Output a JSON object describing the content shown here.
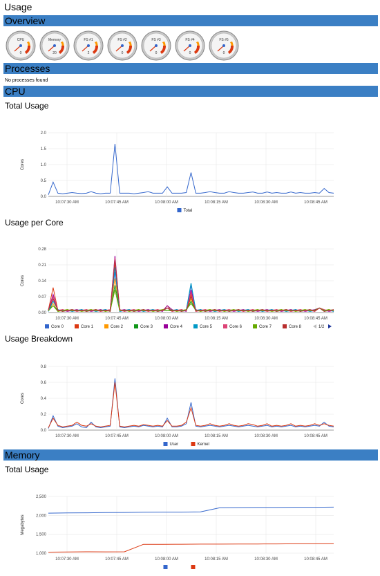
{
  "page": {
    "title": "Usage"
  },
  "sections": {
    "overview": "Overview",
    "processes": "Processes",
    "cpu": "CPU",
    "memory": "Memory"
  },
  "processes": {
    "empty_text": "No processes found"
  },
  "gauges": [
    {
      "label": "CPU",
      "value": "0",
      "icon": "cpu-gauge"
    },
    {
      "label": "Memory",
      "value": "20",
      "icon": "memory-gauge"
    },
    {
      "label": "FS #1",
      "value": "2",
      "icon": "fs-gauge"
    },
    {
      "label": "FS #2",
      "value": "0",
      "icon": "fs-gauge"
    },
    {
      "label": "FS #3",
      "value": "0",
      "icon": "fs-gauge"
    },
    {
      "label": "FS #4",
      "value": "0",
      "icon": "fs-gauge"
    },
    {
      "label": "FS #5",
      "value": "0",
      "icon": "fs-gauge"
    }
  ],
  "cpu": {
    "total_usage_title": "Total Usage",
    "per_core_title": "Usage per Core",
    "breakdown_title": "Usage Breakdown"
  },
  "memory": {
    "total_usage_title": "Total Usage"
  },
  "chart_data": [
    {
      "id": "cpu-total",
      "type": "line",
      "ylabel": "Cores",
      "ylim": [
        0,
        2.0
      ],
      "yticks": [
        "2.0",
        "1.5",
        "1.0",
        "0.5",
        "0.0"
      ],
      "xticks": [
        "10:07:30 AM",
        "10:07:45 AM",
        "10:08:00 AM",
        "10:08:15 AM",
        "10:08:30 AM",
        "10:08:45 AM"
      ],
      "legend": "bottom",
      "series": [
        {
          "name": "Total",
          "color": "#3366cc",
          "values": [
            0.05,
            0.45,
            0.1,
            0.08,
            0.1,
            0.12,
            0.1,
            0.09,
            0.1,
            0.15,
            0.1,
            0.08,
            0.1,
            0.1,
            1.65,
            0.1,
            0.1,
            0.1,
            0.08,
            0.1,
            0.12,
            0.15,
            0.1,
            0.1,
            0.1,
            0.3,
            0.1,
            0.1,
            0.1,
            0.12,
            0.75,
            0.1,
            0.1,
            0.12,
            0.15,
            0.12,
            0.1,
            0.1,
            0.15,
            0.12,
            0.1,
            0.1,
            0.12,
            0.14,
            0.1,
            0.1,
            0.14,
            0.1,
            0.12,
            0.1,
            0.1,
            0.14,
            0.1,
            0.12,
            0.1,
            0.1,
            0.12,
            0.1,
            0.25,
            0.12,
            0.1
          ]
        }
      ]
    },
    {
      "id": "cpu-per-core",
      "type": "line",
      "ylabel": "Cores",
      "ylim": [
        0,
        0.28
      ],
      "yticks": [
        "0.28",
        "0.21",
        "0.14",
        "0.07",
        "0.00"
      ],
      "xticks": [
        "10:07:30 AM",
        "10:07:45 AM",
        "10:08:00 AM",
        "10:08:15 AM",
        "10:08:30 AM",
        "10:08:45 AM"
      ],
      "legend": "bottom",
      "legend_page": "1/2",
      "series": [
        {
          "name": "Core 0",
          "color": "#3366cc",
          "peaks": [
            0.06,
            0.18,
            0.02,
            0.12
          ]
        },
        {
          "name": "Core 1",
          "color": "#dc3912",
          "peaks": [
            0.11,
            0.22,
            0.03,
            0.08
          ]
        },
        {
          "name": "Core 2",
          "color": "#ff9900",
          "peaks": [
            0.04,
            0.15,
            0.02,
            0.06
          ]
        },
        {
          "name": "Core 3",
          "color": "#109618",
          "peaks": [
            0.03,
            0.12,
            0.01,
            0.05
          ]
        },
        {
          "name": "Core 4",
          "color": "#990099",
          "peaks": [
            0.08,
            0.25,
            0.03,
            0.1
          ]
        },
        {
          "name": "Core 5",
          "color": "#0099c6",
          "peaks": [
            0.05,
            0.2,
            0.02,
            0.13
          ]
        },
        {
          "name": "Core 6",
          "color": "#dd4477",
          "peaks": [
            0.07,
            0.24,
            0.02,
            0.09
          ]
        },
        {
          "name": "Core 7",
          "color": "#66aa00",
          "peaks": [
            0.03,
            0.1,
            0.01,
            0.04
          ]
        },
        {
          "name": "Core 8",
          "color": "#b82e2e",
          "peaks": [
            0.06,
            0.23,
            0.02,
            0.07
          ]
        }
      ]
    },
    {
      "id": "cpu-breakdown",
      "type": "line",
      "ylabel": "Cores",
      "ylim": [
        0,
        0.8
      ],
      "yticks": [
        "0.8",
        "0.6",
        "0.4",
        "0.2",
        "0.0"
      ],
      "xticks": [
        "10:07:30 AM",
        "10:07:45 AM",
        "10:08:00 AM",
        "10:08:15 AM",
        "10:08:30 AM",
        "10:08:45 AM"
      ],
      "legend": "bottom",
      "series": [
        {
          "name": "User",
          "color": "#3366cc",
          "values": [
            0.02,
            0.18,
            0.05,
            0.03,
            0.04,
            0.05,
            0.08,
            0.04,
            0.03,
            0.1,
            0.04,
            0.03,
            0.04,
            0.05,
            0.65,
            0.04,
            0.03,
            0.04,
            0.05,
            0.04,
            0.06,
            0.05,
            0.04,
            0.05,
            0.04,
            0.15,
            0.04,
            0.04,
            0.05,
            0.08,
            0.35,
            0.05,
            0.04,
            0.05,
            0.06,
            0.05,
            0.04,
            0.05,
            0.06,
            0.05,
            0.04,
            0.05,
            0.06,
            0.05,
            0.04,
            0.05,
            0.06,
            0.04,
            0.05,
            0.04,
            0.05,
            0.06,
            0.04,
            0.05,
            0.04,
            0.05,
            0.06,
            0.05,
            0.1,
            0.05,
            0.04
          ]
        },
        {
          "name": "Kernel",
          "color": "#dc3912",
          "values": [
            0.03,
            0.15,
            0.06,
            0.04,
            0.05,
            0.06,
            0.1,
            0.06,
            0.05,
            0.08,
            0.05,
            0.04,
            0.05,
            0.06,
            0.6,
            0.05,
            0.04,
            0.05,
            0.06,
            0.05,
            0.07,
            0.06,
            0.05,
            0.06,
            0.05,
            0.12,
            0.05,
            0.05,
            0.06,
            0.1,
            0.28,
            0.06,
            0.05,
            0.06,
            0.08,
            0.06,
            0.05,
            0.06,
            0.08,
            0.06,
            0.05,
            0.06,
            0.08,
            0.07,
            0.05,
            0.06,
            0.08,
            0.05,
            0.06,
            0.05,
            0.06,
            0.08,
            0.05,
            0.06,
            0.05,
            0.06,
            0.08,
            0.06,
            0.08,
            0.06,
            0.05
          ]
        }
      ]
    },
    {
      "id": "memory-total",
      "type": "line",
      "ylabel": "Megabytes",
      "ylim": [
        900,
        2500
      ],
      "yticks": [
        "2,500",
        "2,000",
        "1,500",
        "1,000"
      ],
      "xticks": [
        "10:07:30 AM",
        "10:07:45 AM",
        "10:08:00 AM",
        "10:08:15 AM",
        "10:08:30 AM",
        "10:08:45 AM"
      ],
      "legend": "bottom",
      "series": [
        {
          "name": "",
          "color": "#3366cc",
          "values": [
            2030,
            2035,
            2040,
            2045,
            2050,
            2055,
            2060,
            2060,
            2065,
            2180,
            2185,
            2190,
            2190,
            2195,
            2195,
            2200
          ]
        },
        {
          "name": "",
          "color": "#dc3912",
          "values": [
            930,
            935,
            940,
            938,
            940,
            1150,
            1150,
            1152,
            1155,
            1155,
            1158,
            1160,
            1162,
            1165,
            1165,
            1168
          ]
        }
      ]
    }
  ]
}
